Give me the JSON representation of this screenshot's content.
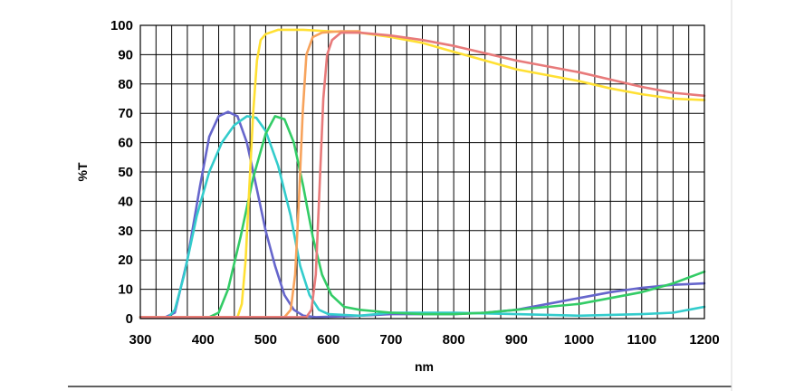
{
  "chart_data": {
    "type": "line",
    "xlabel": "nm",
    "ylabel": "%T",
    "xlim": [
      300,
      1200
    ],
    "ylim": [
      0,
      100
    ],
    "x_ticks": [
      "300",
      "400",
      "500",
      "600",
      "700",
      "800",
      "900",
      "1000",
      "1100",
      "1200"
    ],
    "y_ticks": [
      "0",
      "10",
      "20",
      "30",
      "40",
      "50",
      "60",
      "70",
      "80",
      "90",
      "100"
    ],
    "grid": true,
    "series": [
      {
        "color": "#6666cc",
        "points": [
          [
            300,
            0.5
          ],
          [
            340,
            0.5
          ],
          [
            355,
            2
          ],
          [
            375,
            20
          ],
          [
            395,
            45
          ],
          [
            410,
            62
          ],
          [
            425,
            69
          ],
          [
            440,
            70.5
          ],
          [
            455,
            69
          ],
          [
            470,
            60
          ],
          [
            485,
            45
          ],
          [
            500,
            30
          ],
          [
            515,
            18
          ],
          [
            530,
            8
          ],
          [
            545,
            3
          ],
          [
            560,
            1
          ],
          [
            580,
            0.5
          ],
          [
            650,
            1
          ],
          [
            700,
            1.5
          ],
          [
            800,
            1.5
          ],
          [
            850,
            2
          ],
          [
            900,
            3
          ],
          [
            950,
            5
          ],
          [
            1000,
            7
          ],
          [
            1050,
            9
          ],
          [
            1100,
            10.5
          ],
          [
            1150,
            11.5
          ],
          [
            1200,
            12
          ]
        ]
      },
      {
        "color": "#33cccc",
        "points": [
          [
            300,
            0.5
          ],
          [
            345,
            0.5
          ],
          [
            355,
            3
          ],
          [
            370,
            15
          ],
          [
            390,
            35
          ],
          [
            410,
            50
          ],
          [
            430,
            60
          ],
          [
            450,
            66
          ],
          [
            470,
            69
          ],
          [
            485,
            68.5
          ],
          [
            500,
            64
          ],
          [
            520,
            52
          ],
          [
            540,
            35
          ],
          [
            555,
            18
          ],
          [
            570,
            8
          ],
          [
            585,
            3
          ],
          [
            600,
            1.5
          ],
          [
            650,
            1
          ],
          [
            700,
            2
          ],
          [
            800,
            2
          ],
          [
            900,
            1.5
          ],
          [
            1000,
            1
          ],
          [
            1100,
            1.5
          ],
          [
            1150,
            2
          ],
          [
            1200,
            4
          ]
        ]
      },
      {
        "color": "#33cc66",
        "points": [
          [
            300,
            0.5
          ],
          [
            410,
            0.5
          ],
          [
            425,
            2
          ],
          [
            440,
            10
          ],
          [
            460,
            28
          ],
          [
            480,
            48
          ],
          [
            500,
            63
          ],
          [
            515,
            69
          ],
          [
            530,
            68
          ],
          [
            545,
            60
          ],
          [
            560,
            45
          ],
          [
            575,
            28
          ],
          [
            590,
            15
          ],
          [
            605,
            8
          ],
          [
            625,
            4
          ],
          [
            650,
            3
          ],
          [
            700,
            2
          ],
          [
            750,
            1.5
          ],
          [
            800,
            1.5
          ],
          [
            850,
            2
          ],
          [
            900,
            3
          ],
          [
            950,
            4
          ],
          [
            1000,
            5
          ],
          [
            1050,
            7
          ],
          [
            1100,
            9
          ],
          [
            1150,
            12
          ],
          [
            1200,
            16
          ]
        ]
      },
      {
        "color": "#ffe033",
        "points": [
          [
            300,
            0.5
          ],
          [
            455,
            0.5
          ],
          [
            462,
            5
          ],
          [
            468,
            20
          ],
          [
            474,
            45
          ],
          [
            480,
            70
          ],
          [
            486,
            88
          ],
          [
            492,
            95
          ],
          [
            500,
            97
          ],
          [
            520,
            98.5
          ],
          [
            560,
            98.5
          ],
          [
            600,
            98
          ],
          [
            650,
            97.5
          ],
          [
            700,
            96
          ],
          [
            750,
            94
          ],
          [
            800,
            91
          ],
          [
            850,
            88
          ],
          [
            900,
            85
          ],
          [
            950,
            83
          ],
          [
            1000,
            81
          ],
          [
            1050,
            78.5
          ],
          [
            1100,
            76.5
          ],
          [
            1150,
            75
          ],
          [
            1200,
            74.5
          ]
        ]
      },
      {
        "color": "#f7a35c",
        "points": [
          [
            300,
            0.5
          ],
          [
            530,
            0.5
          ],
          [
            540,
            3
          ],
          [
            547,
            15
          ],
          [
            553,
            40
          ],
          [
            559,
            70
          ],
          [
            565,
            90
          ],
          [
            575,
            96
          ],
          [
            590,
            97.5
          ],
          [
            620,
            98
          ],
          [
            650,
            98
          ]
        ]
      },
      {
        "color": "#e87a7a",
        "points": [
          [
            300,
            0.5
          ],
          [
            565,
            0.5
          ],
          [
            573,
            3
          ],
          [
            580,
            15
          ],
          [
            586,
            45
          ],
          [
            592,
            75
          ],
          [
            598,
            90
          ],
          [
            606,
            95
          ],
          [
            620,
            97.5
          ],
          [
            650,
            97.5
          ],
          [
            700,
            96.5
          ],
          [
            750,
            95
          ],
          [
            800,
            93
          ],
          [
            850,
            90.5
          ],
          [
            900,
            88
          ],
          [
            950,
            86
          ],
          [
            1000,
            84
          ],
          [
            1050,
            81.5
          ],
          [
            1100,
            79
          ],
          [
            1150,
            77
          ],
          [
            1200,
            76
          ]
        ]
      }
    ]
  }
}
